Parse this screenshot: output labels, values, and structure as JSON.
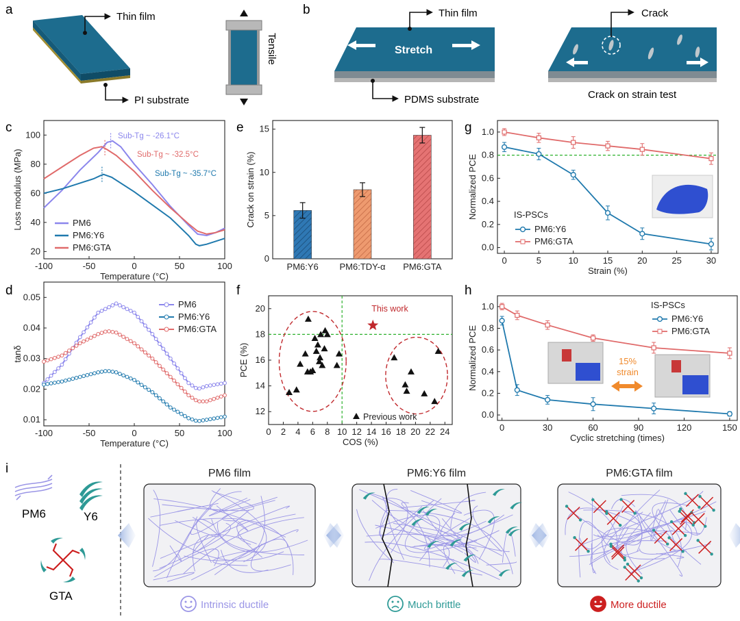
{
  "panel_labels": [
    "a",
    "b",
    "c",
    "d",
    "e",
    "f",
    "g",
    "h",
    "i"
  ],
  "panel_a": {
    "thin_film": "Thin film",
    "substrate": "PI substrate",
    "tensile": "Tensile"
  },
  "panel_b": {
    "thin_film": "Thin film",
    "stretch": "Stretch",
    "substrate": "PDMS substrate",
    "crack": "Crack",
    "crack_test": "Crack on strain test"
  },
  "colors": {
    "pm6": "#8b86ec",
    "y6": "#1f79ad",
    "gta": "#e06a6a",
    "film": "#1d6c8e",
    "film_edge": "#0f4c66",
    "green_ref": "#2bb02b"
  },
  "chart_data": [
    {
      "panel": "c",
      "type": "line",
      "xlabel": "Temperature (°C)",
      "ylabel": "Loss modulus (MPa)",
      "xlim": [
        -100,
        100
      ],
      "ylim": [
        15,
        110
      ],
      "xticks": [
        "-100",
        "-50",
        "0",
        "50",
        "100"
      ],
      "yticks": [
        "20",
        "40",
        "60",
        "80",
        "100"
      ],
      "series": [
        {
          "name": "PM6",
          "x": [
            -100,
            -80,
            -60,
            -40,
            -30,
            -24,
            -15,
            0,
            20,
            40,
            60,
            70,
            80,
            90,
            100
          ],
          "y": [
            50,
            62,
            76,
            88,
            95,
            96,
            92,
            80,
            66,
            51,
            38,
            32,
            31,
            33,
            36
          ]
        },
        {
          "name": "PM6:Y6",
          "x": [
            -100,
            -80,
            -60,
            -45,
            -38,
            -34,
            -25,
            0,
            20,
            40,
            60,
            68,
            72,
            80,
            100
          ],
          "y": [
            60,
            63,
            67,
            70,
            72,
            73,
            71,
            61,
            52,
            43,
            31,
            25,
            24,
            25,
            29
          ]
        },
        {
          "name": "PM6:GTA",
          "x": [
            -100,
            -80,
            -60,
            -45,
            -36,
            -30,
            -20,
            0,
            20,
            40,
            60,
            70,
            80,
            90,
            100
          ],
          "y": [
            70,
            78,
            86,
            91,
            92,
            90,
            86,
            75,
            62,
            50,
            39,
            34,
            32,
            33,
            35
          ]
        }
      ],
      "annotations": [
        {
          "text": "Sub-Tg ~ -26.1°C",
          "x": -26.1
        },
        {
          "text": "Sub-Tg ~ -32.5°C",
          "x": -32.5
        },
        {
          "text": "Sub-Tg ~ -35.7°C",
          "x": -35.7
        }
      ],
      "legend": "bottom-left"
    },
    {
      "panel": "d",
      "type": "line",
      "xlabel": "Temperature (°C)",
      "ylabel": "tanδ",
      "xlim": [
        -100,
        100
      ],
      "ylim": [
        0.008,
        0.055
      ],
      "xticks": [
        "-100",
        "-50",
        "0",
        "50",
        "100"
      ],
      "yticks": [
        "0.01",
        "0.02",
        "0.03",
        "0.04",
        "0.05"
      ],
      "series": [
        {
          "name": "PM6",
          "x": [
            -100,
            -80,
            -60,
            -40,
            -20,
            0,
            20,
            40,
            60,
            70,
            80,
            100
          ],
          "y": [
            0.022,
            0.028,
            0.037,
            0.045,
            0.048,
            0.045,
            0.038,
            0.03,
            0.022,
            0.02,
            0.021,
            0.022
          ]
        },
        {
          "name": "PM6:Y6",
          "x": [
            -100,
            -80,
            -60,
            -40,
            -30,
            -20,
            0,
            20,
            40,
            60,
            70,
            80,
            100
          ],
          "y": [
            0.0215,
            0.0225,
            0.024,
            0.0255,
            0.026,
            0.0255,
            0.023,
            0.019,
            0.014,
            0.0105,
            0.0095,
            0.01,
            0.011
          ]
        },
        {
          "name": "PM6:GTA",
          "x": [
            -100,
            -80,
            -60,
            -40,
            -30,
            -20,
            0,
            20,
            40,
            60,
            70,
            80,
            100
          ],
          "y": [
            0.029,
            0.031,
            0.035,
            0.038,
            0.039,
            0.0385,
            0.035,
            0.03,
            0.024,
            0.018,
            0.016,
            0.016,
            0.018
          ]
        }
      ],
      "legend": "top-right"
    },
    {
      "panel": "e",
      "type": "bar",
      "categories": [
        "PM6:Y6",
        "PM6:TDY-α",
        "PM6:GTA"
      ],
      "values": [
        5.6,
        8.0,
        14.3
      ],
      "errors": [
        0.9,
        0.8,
        0.9
      ],
      "colors": [
        "#2f78b4",
        "#e99167",
        "#e06a6a"
      ],
      "ylabel": "Crack on strain (%)",
      "ylim": [
        0,
        16
      ],
      "yticks": [
        "0",
        "5",
        "10",
        "15"
      ]
    },
    {
      "panel": "f",
      "type": "scatter",
      "xlabel": "COS (%)",
      "ylabel": "PCE (%)",
      "xlim": [
        0,
        25
      ],
      "ylim": [
        11,
        21
      ],
      "xticks": [
        "0",
        "2",
        "4",
        "6",
        "8",
        "10",
        "12",
        "14",
        "16",
        "18",
        "20",
        "22",
        "24"
      ],
      "yticks": [
        "12",
        "14",
        "16",
        "18",
        "20"
      ],
      "series": [
        {
          "name": "Previous work",
          "x": [
            2.8,
            3.8,
            4.3,
            5.0,
            5.3,
            5.4,
            5.7,
            6.0,
            6.3,
            6.5,
            6.7,
            6.9,
            7.0,
            7.1,
            7.3,
            7.6,
            7.7,
            8.0,
            9.3,
            9.6,
            17.1,
            18.6,
            18.8,
            19.4,
            21.2,
            22.6,
            23.1
          ],
          "y": [
            13.5,
            13.7,
            15.7,
            16.5,
            15.1,
            19.2,
            15.1,
            15.2,
            17.7,
            16.7,
            17.2,
            15.9,
            16.2,
            18.0,
            15.6,
            16.9,
            18.3,
            18.0,
            15.6,
            16.5,
            16.2,
            14.1,
            13.6,
            15.1,
            13.4,
            12.8,
            16.7
          ]
        },
        {
          "name": "This work",
          "x": [
            14.2
          ],
          "y": [
            18.7
          ]
        }
      ],
      "reference_lines": {
        "x": 10,
        "y": 18
      }
    },
    {
      "panel": "g",
      "type": "line",
      "xlabel": "Strain (%)",
      "ylabel": "Normalized PCE",
      "xlim": [
        -1,
        31
      ],
      "ylim": [
        -0.05,
        1.1
      ],
      "xticks": [
        "0",
        "5",
        "10",
        "15",
        "20",
        "25",
        "30"
      ],
      "yticks": [
        "0.0",
        "0.2",
        "0.4",
        "0.6",
        "0.8",
        "1.0"
      ],
      "legend_title": "IS-PSCs",
      "series": [
        {
          "name": "PM6:Y6",
          "x": [
            0,
            5,
            10,
            15,
            20,
            30
          ],
          "y": [
            0.87,
            0.81,
            0.63,
            0.3,
            0.12,
            0.03
          ],
          "err": [
            0.04,
            0.05,
            0.04,
            0.06,
            0.05,
            0.05
          ]
        },
        {
          "name": "PM6:GTA",
          "x": [
            0,
            5,
            10,
            15,
            20,
            30
          ],
          "y": [
            1.0,
            0.95,
            0.91,
            0.88,
            0.85,
            0.77
          ],
          "err": [
            0.03,
            0.04,
            0.05,
            0.04,
            0.05,
            0.05
          ]
        }
      ],
      "reference_line_y": 0.8
    },
    {
      "panel": "h",
      "type": "line",
      "xlabel": "Cyclic stretching (times)",
      "ylabel": "Normalized PCE",
      "xlim": [
        -3,
        155
      ],
      "ylim": [
        -0.05,
        1.1
      ],
      "xticks": [
        "0",
        "30",
        "60",
        "90",
        "120",
        "150"
      ],
      "yticks": [
        "0.0",
        "0.2",
        "0.4",
        "0.6",
        "0.8",
        "1.0"
      ],
      "legend_title": "IS-PSCs",
      "series": [
        {
          "name": "PM6:Y6",
          "x": [
            0,
            10,
            30,
            60,
            100,
            150
          ],
          "y": [
            0.87,
            0.23,
            0.14,
            0.1,
            0.06,
            0.01
          ],
          "err": [
            0.04,
            0.05,
            0.04,
            0.06,
            0.05,
            0.02
          ]
        },
        {
          "name": "PM6:GTA",
          "x": [
            0,
            10,
            30,
            60,
            100,
            150
          ],
          "y": [
            1.0,
            0.92,
            0.83,
            0.71,
            0.62,
            0.57
          ],
          "err": [
            0.03,
            0.04,
            0.04,
            0.03,
            0.05,
            0.05
          ]
        }
      ],
      "inset_label": "15%\nstrain"
    }
  ],
  "panel_i": {
    "legend": {
      "pm6": "PM6",
      "y6": "Y6",
      "gta": "GTA"
    },
    "films": [
      {
        "title": "PM6 film",
        "caption": "Intrinsic ductile",
        "color": "#9a95e6"
      },
      {
        "title": "PM6:Y6 film",
        "caption": "Much brittle",
        "color": "#2e9a96"
      },
      {
        "title": "PM6:GTA film",
        "caption": "More ductile",
        "color": "#cc1f1f"
      }
    ]
  }
}
